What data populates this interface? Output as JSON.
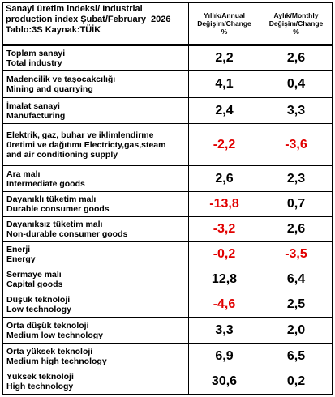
{
  "header": {
    "title_line1": "Sanayi üretim indeksi/ Industrial",
    "title_line2": "production index Şubat/February",
    "year": "2026",
    "title_line3": "Tablo:3S Kaynak:TÜİK",
    "col_annual": [
      "Yıllık/Annual",
      "Değişim/Change",
      "%"
    ],
    "col_monthly": [
      "Aylık/Monthly",
      "Değişim/Change",
      "%"
    ]
  },
  "rows": [
    {
      "label": [
        "Toplam sanayi",
        "Total industry"
      ],
      "annual": "2,2",
      "monthly": "2,6",
      "annual_neg": false,
      "monthly_neg": false
    },
    {
      "label": [
        "Madencilik ve taşocakcılığı",
        "Mining and quarrying"
      ],
      "annual": "4,1",
      "monthly": "0,4",
      "annual_neg": false,
      "monthly_neg": false
    },
    {
      "label": [
        "İmalat sanayi",
        "Manufacturing"
      ],
      "annual": "2,4",
      "monthly": "3,3",
      "annual_neg": false,
      "monthly_neg": false
    },
    {
      "label": [
        "Elektrik, gaz, buhar ve iklimlendirme",
        "üretimi ve dağıtımı Electricty,gas,steam",
        "and air conditioning supply"
      ],
      "annual": "-2,2",
      "monthly": "-3,6",
      "annual_neg": true,
      "monthly_neg": true
    },
    {
      "label": [
        "Ara malı",
        "Intermediate goods"
      ],
      "annual": "2,6",
      "monthly": "2,3",
      "annual_neg": false,
      "monthly_neg": false
    },
    {
      "label": [
        "Dayanıklı tüketim malı",
        "Durable consumer goods"
      ],
      "annual": "-13,8",
      "monthly": "0,7",
      "annual_neg": true,
      "monthly_neg": false
    },
    {
      "label": [
        "Dayanıksız tüketim malı",
        "Non-durable consumer goods"
      ],
      "annual": "-3,2",
      "monthly": "2,6",
      "annual_neg": true,
      "monthly_neg": false
    },
    {
      "label": [
        "Enerji",
        "Energy"
      ],
      "annual": "-0,2",
      "monthly": "-3,5",
      "annual_neg": true,
      "monthly_neg": true
    },
    {
      "label": [
        "Sermaye malı",
        "Capital goods"
      ],
      "annual": "12,8",
      "monthly": "6,4",
      "annual_neg": false,
      "monthly_neg": false
    },
    {
      "label": [
        "Düşük teknoloji",
        "Low technology"
      ],
      "annual": "-4,6",
      "monthly": "2,5",
      "annual_neg": true,
      "monthly_neg": false
    },
    {
      "label": [
        "Orta düşük teknoloji",
        "Medium low technology"
      ],
      "annual": "3,3",
      "monthly": "2,0",
      "annual_neg": false,
      "monthly_neg": false
    },
    {
      "label": [
        "Orta yüksek teknoloji",
        "Medium high technology"
      ],
      "annual": "6,9",
      "monthly": "6,5",
      "annual_neg": false,
      "monthly_neg": false
    },
    {
      "label": [
        "Yüksek teknoloji",
        "High technology"
      ],
      "annual": "30,6",
      "monthly": "0,2",
      "annual_neg": false,
      "monthly_neg": false
    }
  ],
  "colors": {
    "negative": "#e10000",
    "positive": "#000000"
  }
}
